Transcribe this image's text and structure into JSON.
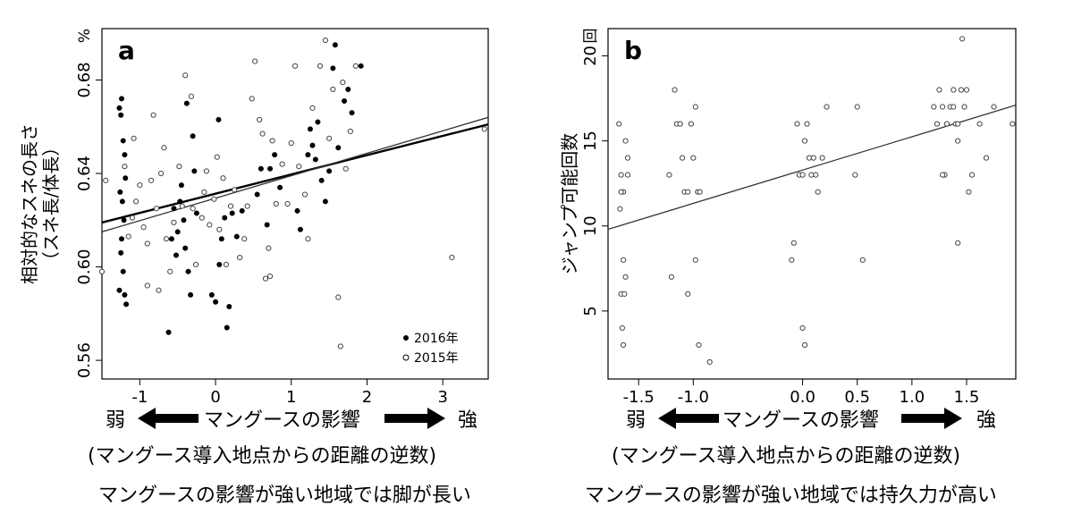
{
  "chart_data": [
    {
      "type": "scatter",
      "panel_label": "a",
      "ylabel_line1": "相対的なスネの長さ",
      "ylabel_line2": "（スネ長/体長）",
      "yunit": "%",
      "xlim": [
        -1.5,
        3.6
      ],
      "ylim": [
        0.552,
        0.702
      ],
      "xticks": [
        -1,
        0,
        1,
        2,
        3
      ],
      "xtick_labels": [
        "-1",
        "0",
        "1",
        "2",
        "3"
      ],
      "yticks": [
        0.56,
        0.6,
        0.64,
        0.68
      ],
      "ytick_labels": [
        "0.56",
        "0.60",
        "0.64",
        "0.68"
      ],
      "legend_position": "bottom-right",
      "series": [
        {
          "name": "2016年",
          "marker": "filled",
          "trend": [
            [
              -1.5,
              0.619
            ],
            [
              3.6,
              0.661
            ]
          ],
          "points": [
            [
              -1.27,
              0.668
            ],
            [
              -1.25,
              0.665
            ],
            [
              -1.24,
              0.672
            ],
            [
              -1.22,
              0.654
            ],
            [
              -1.2,
              0.648
            ],
            [
              -1.26,
              0.632
            ],
            [
              -1.23,
              0.628
            ],
            [
              -1.21,
              0.62
            ],
            [
              -1.25,
              0.606
            ],
            [
              -1.22,
              0.598
            ],
            [
              -1.2,
              0.588
            ],
            [
              -1.27,
              0.59
            ],
            [
              -1.18,
              0.584
            ],
            [
              -1.24,
              0.612
            ],
            [
              -1.19,
              0.638
            ],
            [
              -0.62,
              0.572
            ],
            [
              -0.58,
              0.612
            ],
            [
              -0.55,
              0.625
            ],
            [
              -0.52,
              0.605
            ],
            [
              -0.5,
              0.615
            ],
            [
              -0.47,
              0.628
            ],
            [
              -0.45,
              0.635
            ],
            [
              -0.42,
              0.62
            ],
            [
              -0.4,
              0.608
            ],
            [
              -0.38,
              0.67
            ],
            [
              -0.36,
              0.598
            ],
            [
              -0.33,
              0.588
            ],
            [
              -0.3,
              0.656
            ],
            [
              -0.28,
              0.641
            ],
            [
              -0.25,
              0.623
            ],
            [
              -0.05,
              0.588
            ],
            [
              0.0,
              0.585
            ],
            [
              0.05,
              0.601
            ],
            [
              0.08,
              0.612
            ],
            [
              0.12,
              0.621
            ],
            [
              0.15,
              0.574
            ],
            [
              0.18,
              0.583
            ],
            [
              0.22,
              0.623
            ],
            [
              0.04,
              0.663
            ],
            [
              0.55,
              0.631
            ],
            [
              0.6,
              0.642
            ],
            [
              0.68,
              0.618
            ],
            [
              0.72,
              0.642
            ],
            [
              0.78,
              0.648
            ],
            [
              0.85,
              0.634
            ],
            [
              1.22,
              0.648
            ],
            [
              1.25,
              0.659
            ],
            [
              1.28,
              0.652
            ],
            [
              1.32,
              0.646
            ],
            [
              1.35,
              0.662
            ],
            [
              1.4,
              0.637
            ],
            [
              1.45,
              0.628
            ],
            [
              1.5,
              0.641
            ],
            [
              1.55,
              0.685
            ],
            [
              1.58,
              0.695
            ],
            [
              1.62,
              0.651
            ],
            [
              1.7,
              0.671
            ],
            [
              1.75,
              0.676
            ],
            [
              1.8,
              0.666
            ],
            [
              1.92,
              0.686
            ],
            [
              1.08,
              0.624
            ],
            [
              1.12,
              0.616
            ],
            [
              0.28,
              0.613
            ],
            [
              0.35,
              0.624
            ]
          ]
        },
        {
          "name": "2015年",
          "marker": "open",
          "trend": [
            [
              -1.5,
              0.615
            ],
            [
              3.6,
              0.664
            ]
          ],
          "points": [
            [
              -1.5,
              0.598
            ],
            [
              -1.45,
              0.637
            ],
            [
              -1.2,
              0.643
            ],
            [
              -1.15,
              0.613
            ],
            [
              -1.1,
              0.621
            ],
            [
              -1.08,
              0.655
            ],
            [
              -1.05,
              0.628
            ],
            [
              -1.0,
              0.635
            ],
            [
              -0.95,
              0.617
            ],
            [
              -0.9,
              0.61
            ],
            [
              -0.82,
              0.665
            ],
            [
              -0.78,
              0.625
            ],
            [
              -0.75,
              0.59
            ],
            [
              -0.72,
              0.64
            ],
            [
              -0.68,
              0.651
            ],
            [
              -0.65,
              0.612
            ],
            [
              -0.6,
              0.598
            ],
            [
              -0.55,
              0.619
            ],
            [
              -0.48,
              0.643
            ],
            [
              -0.44,
              0.626
            ],
            [
              -0.4,
              0.682
            ],
            [
              -0.32,
              0.673
            ],
            [
              -0.3,
              0.625
            ],
            [
              -0.18,
              0.621
            ],
            [
              -0.15,
              0.632
            ],
            [
              -0.12,
              0.641
            ],
            [
              -0.08,
              0.618
            ],
            [
              -0.02,
              0.629
            ],
            [
              0.02,
              0.647
            ],
            [
              0.05,
              0.616
            ],
            [
              0.1,
              0.638
            ],
            [
              0.14,
              0.601
            ],
            [
              0.2,
              0.626
            ],
            [
              0.25,
              0.633
            ],
            [
              0.32,
              0.604
            ],
            [
              0.38,
              0.612
            ],
            [
              0.42,
              0.626
            ],
            [
              0.48,
              0.672
            ],
            [
              0.52,
              0.688
            ],
            [
              0.58,
              0.663
            ],
            [
              0.62,
              0.657
            ],
            [
              0.66,
              0.595
            ],
            [
              0.7,
              0.608
            ],
            [
              0.75,
              0.654
            ],
            [
              0.8,
              0.627
            ],
            [
              0.88,
              0.644
            ],
            [
              0.95,
              0.627
            ],
            [
              1.0,
              0.653
            ],
            [
              1.05,
              0.686
            ],
            [
              1.1,
              0.643
            ],
            [
              1.18,
              0.631
            ],
            [
              1.22,
              0.612
            ],
            [
              1.28,
              0.668
            ],
            [
              1.38,
              0.686
            ],
            [
              1.45,
              0.697
            ],
            [
              1.5,
              0.655
            ],
            [
              1.55,
              0.676
            ],
            [
              1.62,
              0.587
            ],
            [
              1.65,
              0.566
            ],
            [
              1.68,
              0.679
            ],
            [
              1.72,
              0.642
            ],
            [
              1.78,
              0.658
            ],
            [
              1.85,
              0.686
            ],
            [
              3.12,
              0.604
            ],
            [
              3.55,
              0.659
            ],
            [
              -0.9,
              0.592
            ],
            [
              -0.85,
              0.637
            ],
            [
              -0.26,
              0.601
            ],
            [
              0.72,
              0.596
            ]
          ]
        }
      ]
    },
    {
      "type": "scatter",
      "panel_label": "b",
      "ylabel": "ジャンプ可能回数",
      "yunit": "回",
      "xlim": [
        -1.78,
        1.95
      ],
      "ylim": [
        1.0,
        21.6
      ],
      "xticks": [
        -1.5,
        -1.0,
        0.0,
        0.5,
        1.0,
        1.5
      ],
      "xtick_labels": [
        "-1.5",
        "-1.0",
        "0.0",
        "0.5",
        "1.0",
        "1.5"
      ],
      "yticks": [
        5,
        10,
        15,
        20
      ],
      "ytick_labels": [
        "5",
        "10",
        "15",
        "20"
      ],
      "series": [
        {
          "name": "",
          "marker": "open",
          "trend": [
            [
              -1.78,
              9.8
            ],
            [
              1.95,
              17.1
            ]
          ],
          "points": [
            [
              -1.68,
              16
            ],
            [
              -1.66,
              13
            ],
            [
              -1.64,
              12
            ],
            [
              -1.62,
              15
            ],
            [
              -1.6,
              14
            ],
            [
              -1.66,
              12
            ],
            [
              -1.64,
              8
            ],
            [
              -1.62,
              7
            ],
            [
              -1.66,
              6
            ],
            [
              -1.63,
              6
            ],
            [
              -1.65,
              4
            ],
            [
              -1.64,
              3
            ],
            [
              -1.6,
              13
            ],
            [
              -1.67,
              11
            ],
            [
              -1.17,
              18
            ],
            [
              -1.15,
              16
            ],
            [
              -1.12,
              16
            ],
            [
              -1.1,
              14
            ],
            [
              -1.08,
              12
            ],
            [
              -1.05,
              12
            ],
            [
              -1.02,
              16
            ],
            [
              -1.0,
              14
            ],
            [
              -0.98,
              17
            ],
            [
              -0.96,
              12
            ],
            [
              -0.94,
              12
            ],
            [
              -1.2,
              7
            ],
            [
              -1.05,
              6
            ],
            [
              -0.98,
              8
            ],
            [
              -0.95,
              3
            ],
            [
              -0.85,
              2
            ],
            [
              -1.22,
              13
            ],
            [
              -0.05,
              16
            ],
            [
              -0.03,
              13
            ],
            [
              0.0,
              13
            ],
            [
              0.02,
              15
            ],
            [
              0.04,
              16
            ],
            [
              0.06,
              14
            ],
            [
              0.08,
              13
            ],
            [
              0.1,
              14
            ],
            [
              0.12,
              13
            ],
            [
              0.14,
              12
            ],
            [
              -0.08,
              9
            ],
            [
              -0.1,
              8
            ],
            [
              0.0,
              4
            ],
            [
              0.02,
              3
            ],
            [
              0.18,
              14
            ],
            [
              0.22,
              17
            ],
            [
              0.5,
              17
            ],
            [
              0.55,
              8
            ],
            [
              0.48,
              13
            ],
            [
              1.2,
              17
            ],
            [
              1.23,
              16
            ],
            [
              1.25,
              18
            ],
            [
              1.28,
              17
            ],
            [
              1.3,
              13
            ],
            [
              1.32,
              16
            ],
            [
              1.35,
              17
            ],
            [
              1.38,
              18
            ],
            [
              1.4,
              16
            ],
            [
              1.42,
              15
            ],
            [
              1.45,
              18
            ],
            [
              1.48,
              17
            ],
            [
              1.52,
              12
            ],
            [
              1.55,
              13
            ],
            [
              1.42,
              9
            ],
            [
              1.46,
              21
            ],
            [
              1.62,
              16
            ],
            [
              1.68,
              14
            ],
            [
              1.75,
              17
            ],
            [
              1.92,
              16
            ],
            [
              1.28,
              13
            ],
            [
              1.38,
              17
            ],
            [
              1.42,
              16
            ],
            [
              1.5,
              18
            ]
          ]
        }
      ]
    }
  ],
  "legend": {
    "item1": "2016年",
    "item2": "2015年"
  },
  "panel_a": {
    "weak": "弱",
    "strong": "強",
    "arrow_label": "マングースの影響",
    "subtitle": "(マングース導入地点からの距離の逆数)",
    "caption": "マングースの影響が強い地域では脚が長い"
  },
  "panel_b": {
    "weak": "弱",
    "strong": "強",
    "arrow_label": "マングースの影響",
    "subtitle": "(マングース導入地点からの距離の逆数)",
    "caption": "マングースの影響が強い地域では持久力が高い"
  }
}
